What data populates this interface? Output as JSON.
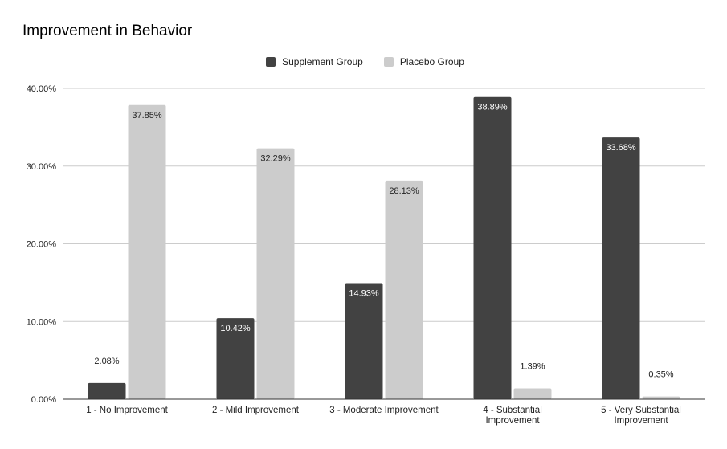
{
  "colors": {
    "supplement": "#424242",
    "placebo": "#cccccc",
    "grid": "#cccccc",
    "axis": "#333333"
  },
  "chart_data": {
    "type": "bar",
    "title": "Improvement in Behavior",
    "categories": [
      [
        "1 - No Improvement"
      ],
      [
        "2 - Mild Improvement"
      ],
      [
        "3 - Moderate Improvement"
      ],
      [
        "4 - Substantial",
        "Improvement"
      ],
      [
        "5 - Very Substantial",
        "Improvement"
      ]
    ],
    "series": [
      {
        "name": "Supplement Group",
        "values": [
          2.08,
          10.42,
          14.93,
          38.89,
          33.68
        ],
        "labels": [
          "2.08%",
          "10.42%",
          "14.93%",
          "38.89%",
          "33.68%"
        ]
      },
      {
        "name": "Placebo Group",
        "values": [
          37.85,
          32.29,
          28.13,
          1.39,
          0.35
        ],
        "labels": [
          "37.85%",
          "32.29%",
          "28.13%",
          "1.39%",
          "0.35%"
        ]
      }
    ],
    "ylim": [
      0,
      40
    ],
    "yticks": [
      0,
      10,
      20,
      30,
      40
    ],
    "ytick_labels": [
      "0.00%",
      "10.00%",
      "20.00%",
      "30.00%",
      "40.00%"
    ],
    "grid": true,
    "legend_position": "top-center"
  }
}
